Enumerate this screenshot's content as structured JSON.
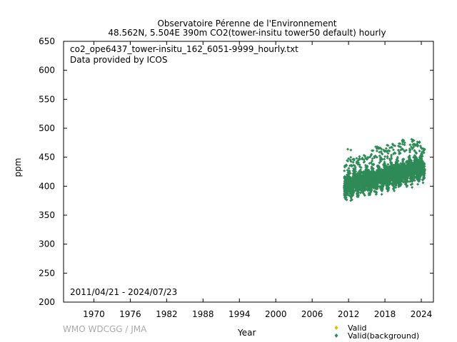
{
  "title": {
    "line1": "Observatoire Pérenne de l'Environnement",
    "line2": "48.562N, 5.504E 390m     CO2(tower-insitu tower50 default) hourly"
  },
  "notes": {
    "file": "co2_ope6437_tower-insitu_162_6051-9999_hourly.txt",
    "provider": "Data provided by ICOS",
    "period": "2011/04/21 - 2024/07/23"
  },
  "credit": "WMO WDCGG / JMA",
  "colors": {
    "valid": "#e6b800",
    "background": "#2e8b57"
  },
  "chart_data": {
    "type": "scatter",
    "xlabel": "Year",
    "ylabel": "ppm",
    "xlim": [
      1965,
      2026
    ],
    "ylim": [
      200,
      650
    ],
    "xticks": [
      1970,
      1976,
      1982,
      1988,
      1994,
      2000,
      2006,
      2012,
      2018,
      2024
    ],
    "yticks": [
      200,
      250,
      300,
      350,
      400,
      450,
      500,
      550,
      600,
      650
    ],
    "legend_position": "bottom-right",
    "grid": false,
    "series": [
      {
        "name": "Valid",
        "marker": "diamond",
        "color": "#e6b800",
        "points": []
      },
      {
        "name": "Valid(background)",
        "marker": "diamond",
        "color": "#2e8b57",
        "annual_envelope": [
          {
            "year": 2011.3,
            "low": 376,
            "high": 425,
            "peak": 430
          },
          {
            "year": 2012.0,
            "low": 374,
            "high": 430,
            "peak": 472
          },
          {
            "year": 2013.0,
            "low": 378,
            "high": 432,
            "peak": 452
          },
          {
            "year": 2014.0,
            "low": 379,
            "high": 433,
            "peak": 452
          },
          {
            "year": 2015.0,
            "low": 382,
            "high": 437,
            "peak": 455
          },
          {
            "year": 2016.0,
            "low": 384,
            "high": 440,
            "peak": 472
          },
          {
            "year": 2017.0,
            "low": 387,
            "high": 442,
            "peak": 468
          },
          {
            "year": 2018.0,
            "low": 389,
            "high": 445,
            "peak": 465
          },
          {
            "year": 2019.0,
            "low": 392,
            "high": 447,
            "peak": 482
          },
          {
            "year": 2020.0,
            "low": 394,
            "high": 450,
            "peak": 470
          },
          {
            "year": 2021.0,
            "low": 397,
            "high": 452,
            "peak": 484
          },
          {
            "year": 2022.0,
            "low": 399,
            "high": 455,
            "peak": 482
          },
          {
            "year": 2023.0,
            "low": 402,
            "high": 457,
            "peak": 480
          },
          {
            "year": 2024.0,
            "low": 404,
            "high": 458,
            "peak": 482
          },
          {
            "year": 2024.55,
            "low": 405,
            "high": 455,
            "peak": 470
          }
        ]
      }
    ]
  }
}
